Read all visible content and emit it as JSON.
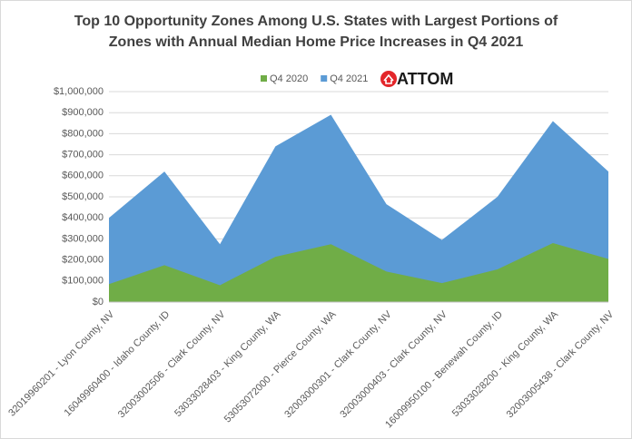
{
  "chart_data": {
    "type": "area",
    "title": [
      "Top 10 Opportunity Zones Among U.S. States with Largest Portions of",
      "Zones with Annual Median Home Price Increases in Q4 2021"
    ],
    "logo": "ATTOM",
    "categories": [
      "32019960201 - Lyon County, NV",
      "16049960400 - Idaho County, ID",
      "32003002506 - Clark County, NV",
      "53033028403 - King County, WA",
      "53053072000 - Pierce County, WA",
      "32003000301 - Clark County, NV",
      "32003000403 - Clark County, NV",
      "16009950100 - Benewah County, ID",
      "53033028200 - King County, WA",
      "32003005438 - Clark County, NV"
    ],
    "series": [
      {
        "name": "Q4 2020",
        "color": "#70ad47",
        "values": [
          85000,
          175000,
          80000,
          215000,
          275000,
          145000,
          90000,
          155000,
          280000,
          205000
        ]
      },
      {
        "name": "Q4 2021",
        "color": "#5b9bd5",
        "values": [
          400000,
          620000,
          275000,
          740000,
          890000,
          465000,
          295000,
          500000,
          860000,
          620000
        ]
      }
    ],
    "ylim": [
      0,
      1000000
    ],
    "yticks": [
      {
        "value": 0,
        "label": "$0"
      },
      {
        "value": 100000,
        "label": "$100,000"
      },
      {
        "value": 200000,
        "label": "$200,000"
      },
      {
        "value": 300000,
        "label": "$300,000"
      },
      {
        "value": 400000,
        "label": "$400,000"
      },
      {
        "value": 500000,
        "label": "$500,000"
      },
      {
        "value": 600000,
        "label": "$600,000"
      },
      {
        "value": 700000,
        "label": "$700,000"
      },
      {
        "value": 800000,
        "label": "$800,000"
      },
      {
        "value": 900000,
        "label": "$900,000"
      },
      {
        "value": 1000000,
        "label": "$1,000,000"
      }
    ],
    "grid": true,
    "legend": "top"
  }
}
